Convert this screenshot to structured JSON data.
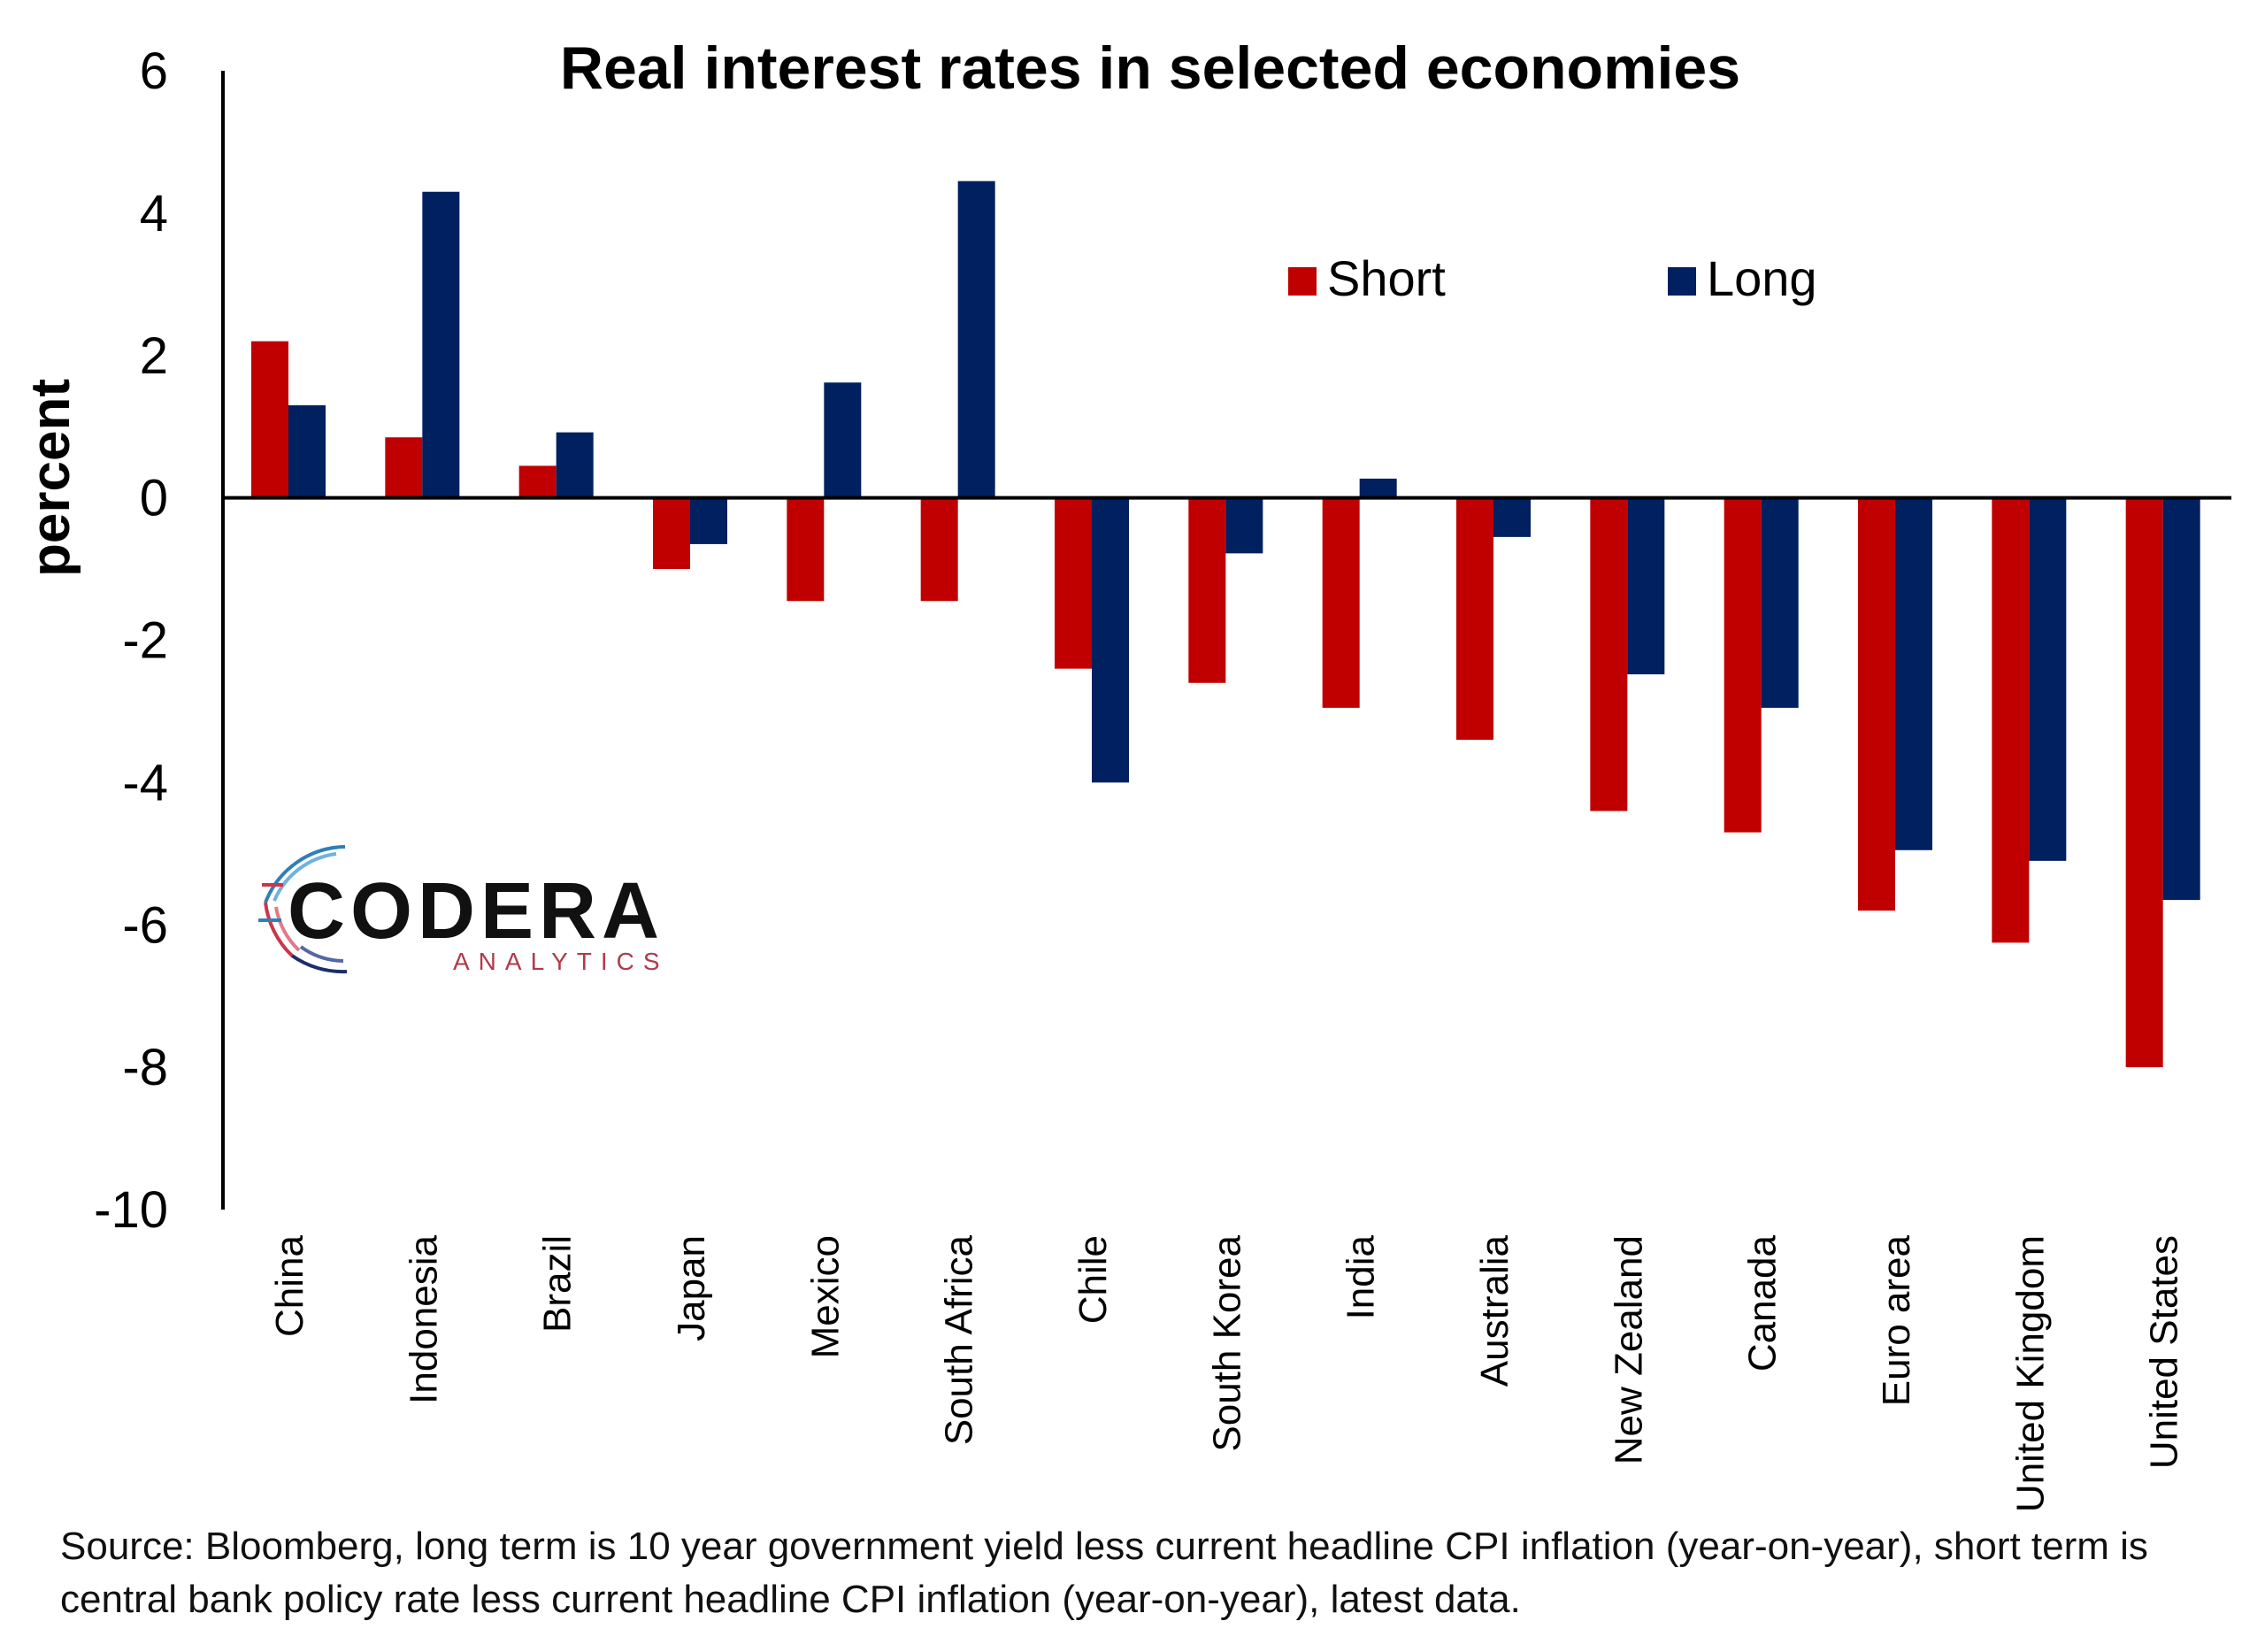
{
  "colors": {
    "short": "#C00000",
    "long": "#002060",
    "axis": "#000000",
    "text": "#000000"
  },
  "chart_data": {
    "type": "bar",
    "title": "Real interest rates in selected economies",
    "xlabel": "",
    "ylabel": "percent",
    "ylim": [
      -10,
      6
    ],
    "yticks": [
      6,
      4,
      2,
      0,
      -2,
      -4,
      -6,
      -8,
      -10
    ],
    "ytick_labels": [
      "6",
      "4",
      "2",
      "0",
      "-2",
      "-4",
      "-6",
      "-8",
      "-10"
    ],
    "grid": false,
    "legend_position": "top-right",
    "categories": [
      "China",
      "Indonesia",
      "Brazil",
      "Japan",
      "Mexico",
      "South Africa",
      "Chile",
      "South Korea",
      "India",
      "Australia",
      "New Zealand",
      "Canada",
      "Euro area",
      "United Kingdom",
      "United States"
    ],
    "series": [
      {
        "name": "Short",
        "color": "#C00000",
        "values": [
          2.2,
          0.85,
          0.45,
          -1.0,
          -1.45,
          -1.45,
          -2.4,
          -2.6,
          -2.95,
          -3.4,
          -4.4,
          -4.7,
          -5.8,
          -6.25,
          -8.0
        ]
      },
      {
        "name": "Long",
        "color": "#002060",
        "values": [
          1.3,
          4.3,
          0.92,
          -0.65,
          1.62,
          4.45,
          -4.0,
          -0.78,
          0.27,
          -0.55,
          -2.48,
          -2.95,
          -4.95,
          -5.1,
          -5.65
        ]
      }
    ]
  },
  "logo": {
    "name": "CODERA",
    "subtitle": "ANALYTICS"
  },
  "source_note": "Source: Bloomberg, long term is 10 year government yield less current headline CPI inflation (year-on-year), short term is central bank policy rate less current headline CPI inflation (year-on-year), latest data."
}
